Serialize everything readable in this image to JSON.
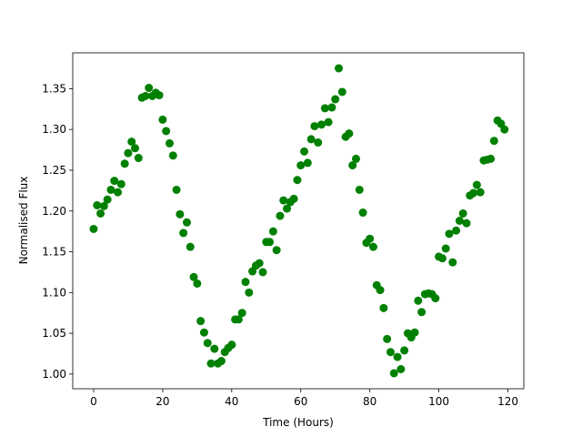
{
  "chart_data": {
    "type": "scatter",
    "x_label": "Time (Hours)",
    "y_label": "Normalised Flux",
    "x": [
      0,
      1,
      2,
      3,
      4,
      5,
      6,
      7,
      8,
      9,
      10,
      11,
      12,
      13,
      14,
      15,
      16,
      17,
      18,
      19,
      20,
      21,
      22,
      23,
      24,
      25,
      26,
      27,
      28,
      29,
      30,
      31,
      32,
      33,
      34,
      35,
      36,
      37,
      38,
      39,
      40,
      41,
      42,
      43,
      44,
      45,
      46,
      47,
      48,
      49,
      50,
      51,
      52,
      53,
      54,
      55,
      56,
      57,
      58,
      59,
      60,
      61,
      62,
      63,
      64,
      65,
      66,
      67,
      68,
      69,
      70,
      71,
      72,
      73,
      74,
      75,
      76,
      77,
      78,
      79,
      80,
      81,
      82,
      83,
      84,
      85,
      86,
      87,
      88,
      89,
      90,
      91,
      92,
      93,
      94,
      95,
      96,
      97,
      98,
      99,
      100,
      101,
      102,
      103,
      104,
      105,
      106,
      107,
      108,
      109,
      110,
      111,
      112,
      113,
      114,
      115,
      116,
      117,
      118,
      119
    ],
    "values": [
      1.178,
      1.207,
      1.197,
      1.206,
      1.214,
      1.226,
      1.237,
      1.223,
      1.233,
      1.258,
      1.271,
      1.285,
      1.277,
      1.265,
      1.339,
      1.341,
      1.351,
      1.341,
      1.345,
      1.342,
      1.312,
      1.298,
      1.283,
      1.268,
      1.226,
      1.196,
      1.173,
      1.186,
      1.156,
      1.119,
      1.111,
      1.065,
      1.051,
      1.038,
      1.013,
      1.031,
      1.013,
      1.016,
      1.027,
      1.032,
      1.036,
      1.067,
      1.067,
      1.075,
      1.113,
      1.1,
      1.126,
      1.133,
      1.136,
      1.125,
      1.162,
      1.162,
      1.175,
      1.152,
      1.194,
      1.213,
      1.203,
      1.211,
      1.215,
      1.238,
      1.256,
      1.273,
      1.259,
      1.288,
      1.304,
      1.284,
      1.306,
      1.326,
      1.309,
      1.327,
      1.337,
      1.375,
      1.346,
      1.291,
      1.295,
      1.256,
      1.264,
      1.226,
      1.198,
      1.161,
      1.166,
      1.156,
      1.109,
      1.103,
      1.081,
      1.043,
      1.027,
      1.001,
      1.021,
      1.006,
      1.029,
      1.05,
      1.045,
      1.051,
      1.09,
      1.076,
      1.098,
      1.099,
      1.098,
      1.093,
      1.144,
      1.142,
      1.154,
      1.172,
      1.137,
      1.176,
      1.188,
      1.197,
      1.185,
      1.219,
      1.222,
      1.232,
      1.223,
      1.262,
      1.263,
      1.264,
      1.286,
      1.311,
      1.307,
      1.3
    ],
    "color": "#008000",
    "xlim": [
      -6.05,
      124.6
    ],
    "ylim": [
      0.982,
      1.394
    ],
    "xticks": [
      0,
      20,
      40,
      60,
      80,
      100,
      120
    ],
    "yticks": [
      {
        "value": 1.0,
        "label": "1.00"
      },
      1.05,
      {
        "value": 1.1,
        "label": "1.10"
      },
      1.15,
      {
        "value": 1.2,
        "label": "1.20"
      },
      1.25,
      {
        "value": 1.3,
        "label": "1.30"
      },
      1.35
    ],
    "grid": false
  }
}
